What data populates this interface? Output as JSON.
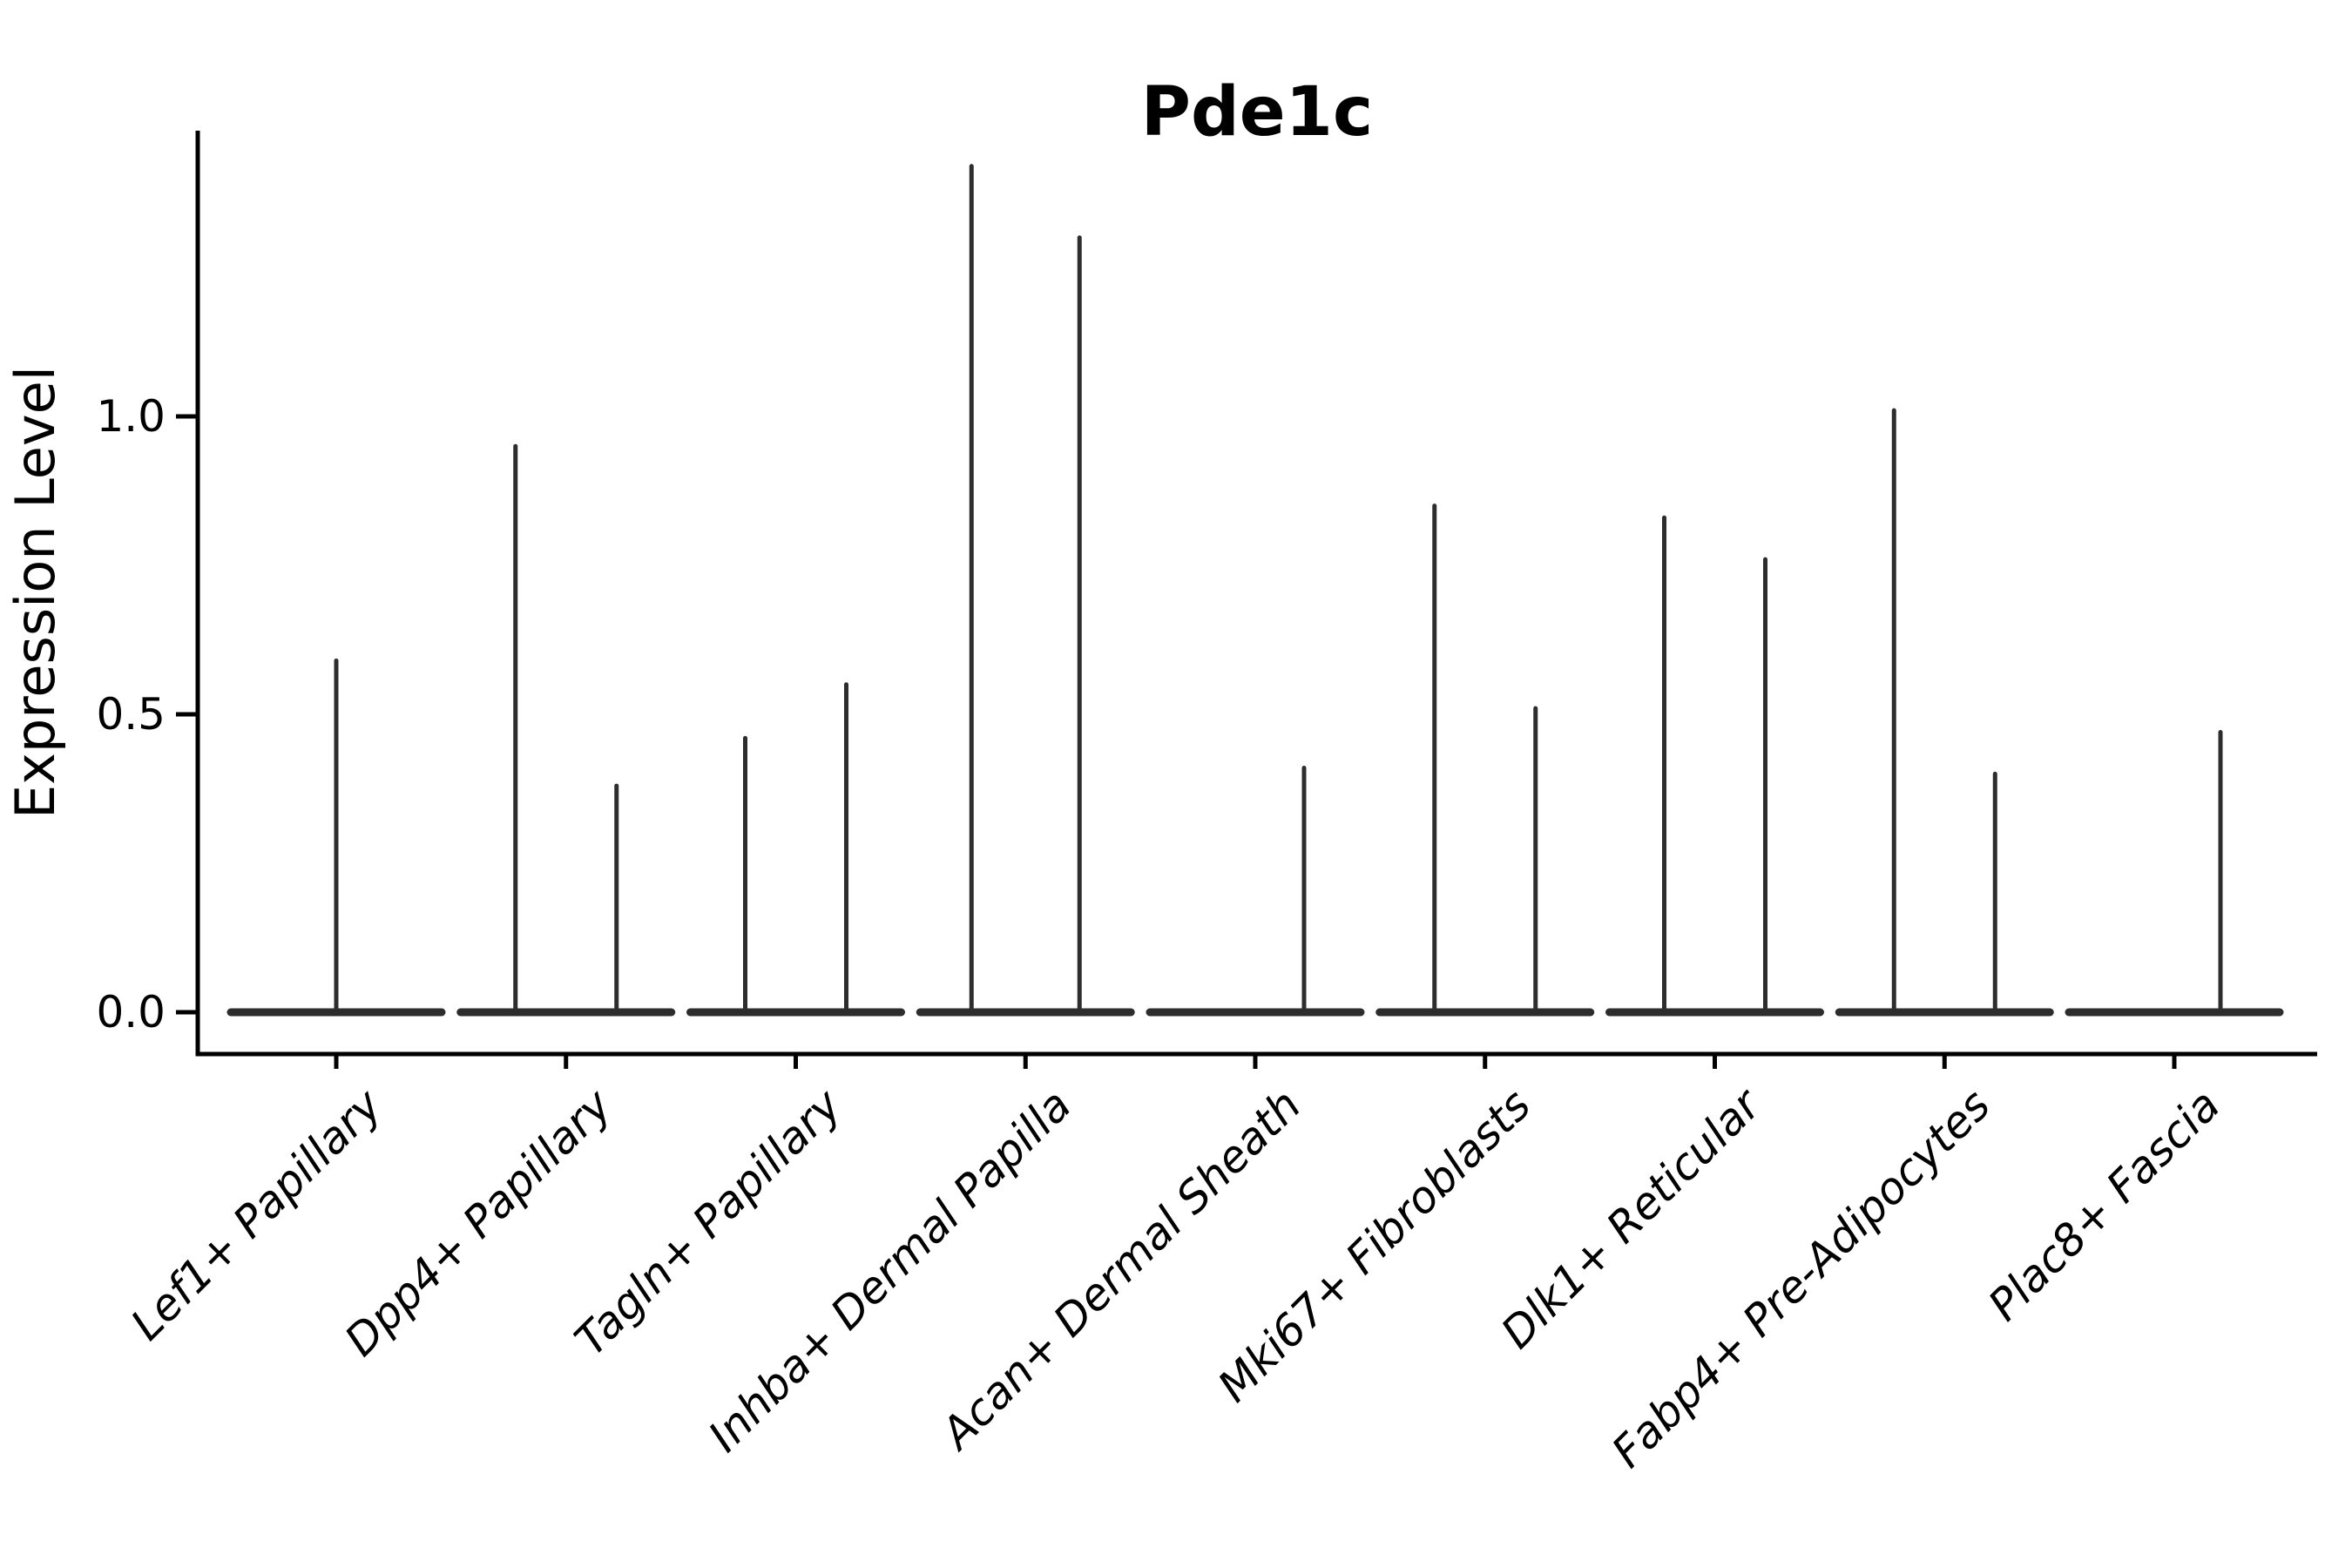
{
  "figure": {
    "background": "#ffffff"
  },
  "colors": {
    "violin_stroke": "#2d2d2d",
    "axis_stroke": "#000000",
    "text": "#000000"
  },
  "chart_data": {
    "type": "violin",
    "title": "Pde1c",
    "xlabel": "",
    "ylabel": "Expression Level",
    "ylim": [
      -0.07,
      1.49
    ],
    "yticks": [
      {
        "value": 0.0,
        "label": "0.0"
      },
      {
        "value": 0.5,
        "label": "0.5"
      },
      {
        "value": 1.0,
        "label": "1.0"
      }
    ],
    "grid": false,
    "legend": "none",
    "categories": [
      "Lef1+ Papillary",
      "Dpp4+ Papillary",
      "Tagln+ Papillary",
      "Inhba+ Dermal Papilla",
      "Acan+ Dermal Sheath",
      "Mki67+ Fibroblasts",
      "Dlk1+ Reticular",
      "Fabp4+ Pre-Adipocytes",
      "Plac8+ Fascia"
    ],
    "violins": [
      {
        "category": "Lef1+ Papillary",
        "baseline_value": 0.0,
        "spikes": [
          {
            "dx": 0,
            "peak": 0.59
          }
        ]
      },
      {
        "category": "Dpp4+ Papillary",
        "baseline_value": 0.0,
        "spikes": [
          {
            "dx": -58,
            "peak": 0.95
          },
          {
            "dx": 58,
            "peak": 0.38
          }
        ]
      },
      {
        "category": "Tagln+ Papillary",
        "baseline_value": 0.0,
        "spikes": [
          {
            "dx": -58,
            "peak": 0.46
          },
          {
            "dx": 58,
            "peak": 0.55
          }
        ]
      },
      {
        "category": "Inhba+ Dermal Papilla",
        "baseline_value": 0.0,
        "spikes": [
          {
            "dx": -62,
            "peak": 1.42
          },
          {
            "dx": 62,
            "peak": 1.3
          }
        ]
      },
      {
        "category": "Acan+ Dermal Sheath",
        "baseline_value": 0.0,
        "spikes": [
          {
            "dx": 56,
            "peak": 0.41
          }
        ]
      },
      {
        "category": "Mki67+ Fibroblasts",
        "baseline_value": 0.0,
        "spikes": [
          {
            "dx": -58,
            "peak": 0.85
          },
          {
            "dx": 58,
            "peak": 0.51
          }
        ]
      },
      {
        "category": "Dlk1+ Reticular",
        "baseline_value": 0.0,
        "spikes": [
          {
            "dx": -58,
            "peak": 0.83
          },
          {
            "dx": 58,
            "peak": 0.76
          }
        ]
      },
      {
        "category": "Fabp4+ Pre-Adipocytes",
        "baseline_value": 0.0,
        "spikes": [
          {
            "dx": -58,
            "peak": 1.01
          },
          {
            "dx": 58,
            "peak": 0.4
          }
        ]
      },
      {
        "category": "Plac8+ Fascia",
        "baseline_value": 0.0,
        "spikes": [
          {
            "dx": 53,
            "peak": 0.47
          }
        ]
      }
    ]
  }
}
